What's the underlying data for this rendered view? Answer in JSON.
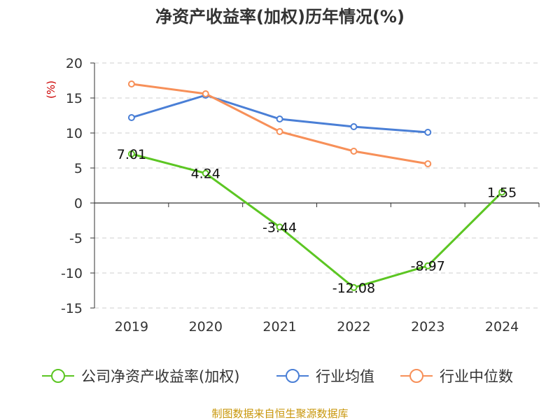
{
  "chart_data": {
    "type": "line",
    "title": "净资产收益率(加权)历年情况(%)",
    "unit_label": "(%)",
    "categories": [
      "2019",
      "2020",
      "2021",
      "2022",
      "2023",
      "2024"
    ],
    "ylim": [
      -15,
      20
    ],
    "yticks": [
      20,
      15,
      10,
      5,
      0,
      -5,
      -10,
      -15
    ],
    "grid": true,
    "legend_position": "bottom",
    "series": [
      {
        "name": "公司净资产收益率(加权)",
        "color": "#5cc623",
        "values": [
          7.01,
          4.24,
          -3.44,
          -12.08,
          -8.97,
          1.55
        ],
        "labels": [
          "7.01",
          "4.24",
          "-3.44",
          "-12.08",
          "-8.97",
          "1.55"
        ]
      },
      {
        "name": "行业均值",
        "color": "#4a7fd6",
        "values": [
          12.2,
          15.4,
          12.0,
          10.9,
          10.1,
          null
        ]
      },
      {
        "name": "行业中位数",
        "color": "#f79059",
        "values": [
          17.0,
          15.6,
          10.2,
          7.4,
          5.6,
          null
        ]
      }
    ]
  },
  "source": "制图数据来自恒生聚源数据库"
}
